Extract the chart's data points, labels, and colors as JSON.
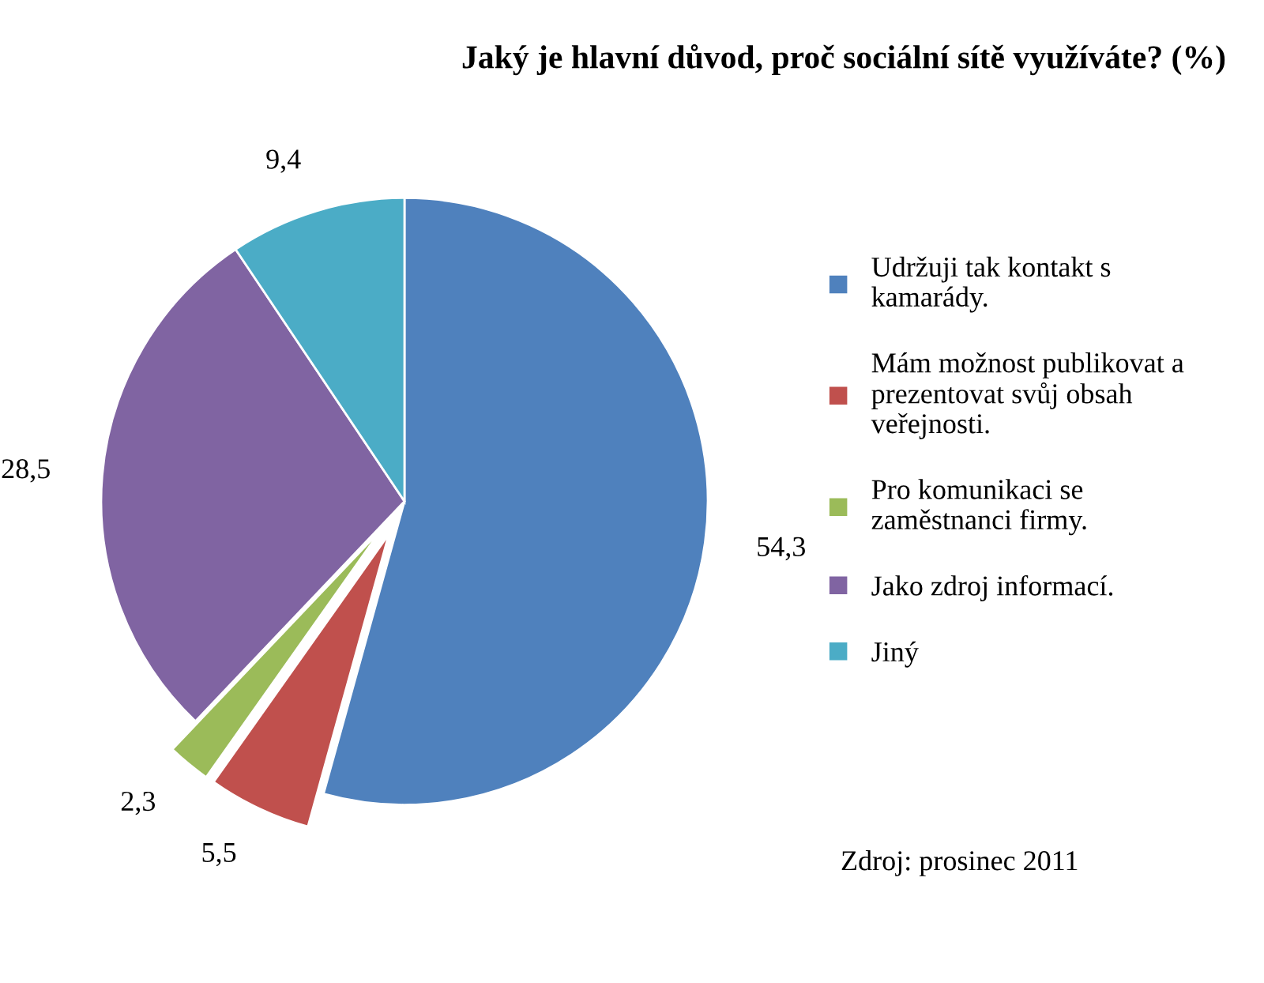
{
  "chart_data": {
    "type": "pie",
    "title": "Jaký je hlavní důvod, proč sociální sítě využíváte? (%)",
    "categories": [
      "Udržuji tak kontakt s kamarády.",
      "Mám možnost publikovat a prezentovat svůj obsah veřejnosti.",
      "Pro komunikaci se zaměstnanci firmy.",
      "Jako zdroj informací.",
      "Jiný"
    ],
    "values": [
      54.3,
      5.5,
      2.3,
      28.5,
      9.4
    ],
    "value_labels": [
      "54,3",
      "5,5",
      "2,3",
      "28,5",
      "9,4"
    ],
    "colors": [
      "#4f81bd",
      "#c0504d",
      "#9bbb59",
      "#8064a2",
      "#4bacc6"
    ],
    "legend": "right",
    "annotations": [
      "Zdroj: prosinec 2011"
    ]
  }
}
